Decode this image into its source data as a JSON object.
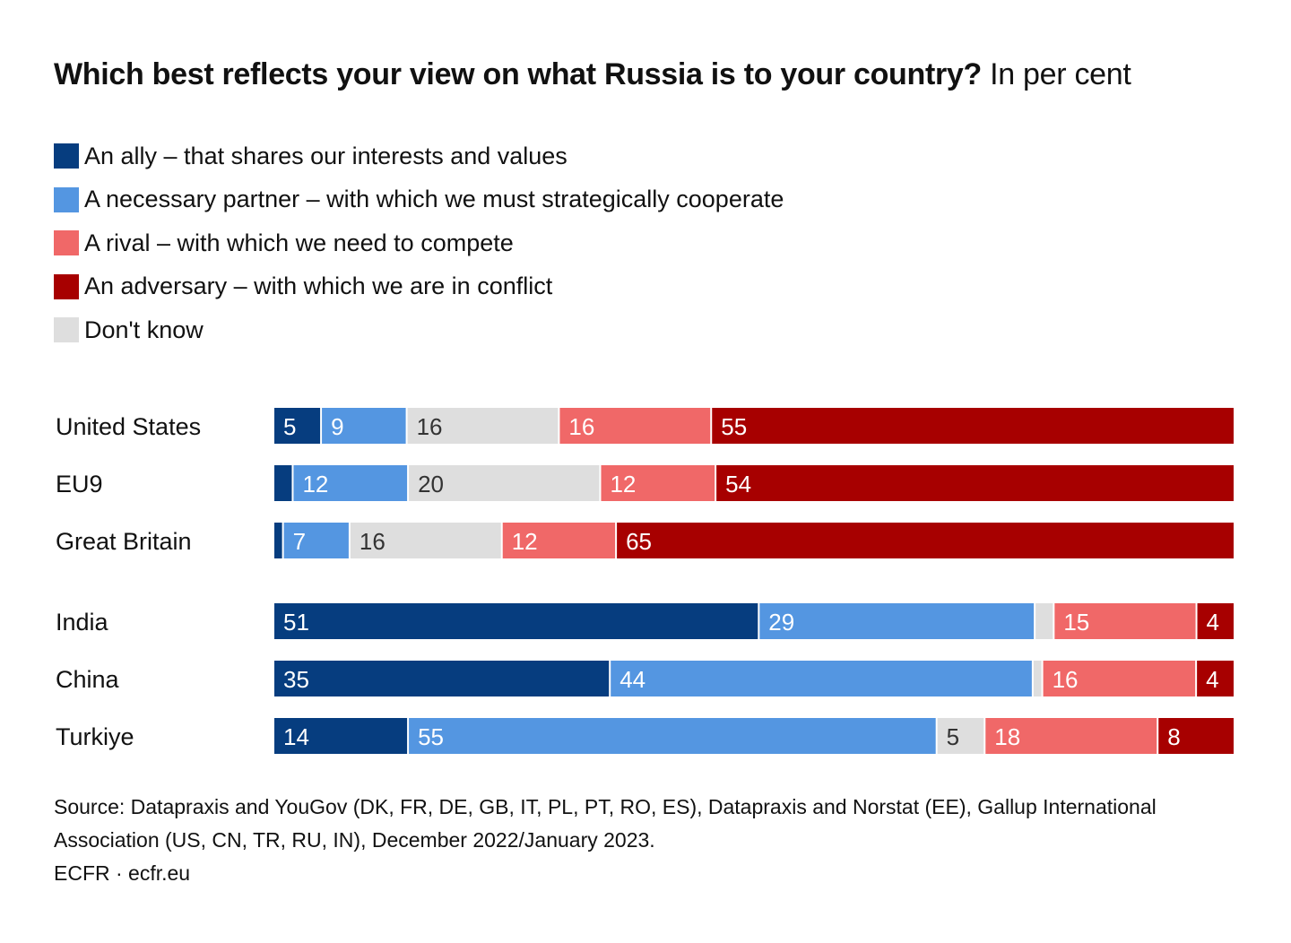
{
  "title": {
    "main": "Which best reflects your view on what Russia is to your country?",
    "sub": "In per cent"
  },
  "colors": {
    "ally": "#063d7f",
    "partner": "#5496e1",
    "dontknow": "#dedede",
    "rival": "#f06868",
    "adversary": "#a70000"
  },
  "legend": [
    {
      "key": "ally",
      "label": "An ally – that shares our interests and values"
    },
    {
      "key": "partner",
      "label": "A necessary partner – with which we must strategically cooperate"
    },
    {
      "key": "rival",
      "label": "A rival – with which we need to compete"
    },
    {
      "key": "adversary",
      "label": "An adversary – with which we are in conflict"
    },
    {
      "key": "dontknow",
      "label": "Don't know"
    }
  ],
  "chart_data": {
    "type": "bar",
    "orientation": "horizontal",
    "stacked": true,
    "normalized_percent": true,
    "segment_order": [
      "ally",
      "partner",
      "dontknow",
      "rival",
      "adversary"
    ],
    "groups": [
      {
        "rows": [
          {
            "label": "United States",
            "values": {
              "ally": 5,
              "partner": 9,
              "dontknow": 16,
              "rival": 16,
              "adversary": 55
            },
            "shown": {
              "ally": "5",
              "partner": "9",
              "dontknow": "16",
              "rival": "16",
              "adversary": "55"
            }
          },
          {
            "label": "EU9",
            "values": {
              "ally": 2,
              "partner": 12,
              "dontknow": 20,
              "rival": 12,
              "adversary": 54
            },
            "shown": {
              "partner": "12",
              "dontknow": "20",
              "rival": "12",
              "adversary": "54"
            }
          },
          {
            "label": "Great Britain",
            "values": {
              "ally": 1,
              "partner": 7,
              "dontknow": 16,
              "rival": 12,
              "adversary": 65
            },
            "shown": {
              "partner": "7",
              "dontknow": "16",
              "rival": "12",
              "adversary": "65"
            }
          }
        ]
      },
      {
        "rows": [
          {
            "label": "India",
            "values": {
              "ally": 51,
              "partner": 29,
              "dontknow": 2,
              "rival": 15,
              "adversary": 4
            },
            "shown": {
              "ally": "51",
              "partner": "29",
              "rival": "15",
              "adversary": "4"
            }
          },
          {
            "label": "China",
            "values": {
              "ally": 35,
              "partner": 44,
              "dontknow": 1,
              "rival": 16,
              "adversary": 4
            },
            "shown": {
              "ally": "35",
              "partner": "44",
              "rival": "16",
              "adversary": "4"
            }
          },
          {
            "label": "Turkiye",
            "values": {
              "ally": 14,
              "partner": 55,
              "dontknow": 5,
              "rival": 18,
              "adversary": 8
            },
            "shown": {
              "ally": "14",
              "partner": "55",
              "dontknow": "5",
              "rival": "18",
              "adversary": "8"
            }
          }
        ]
      }
    ],
    "xlim": [
      0,
      100
    ]
  },
  "footer": {
    "source": "Source: Datapraxis and YouGov (DK, FR, DE, GB, IT, PL, PT, RO, ES), Datapraxis and Norstat (EE), Gallup International Association (US, CN, TR, RU, IN), December 2022/January 2023.",
    "credit": "ECFR · ecfr.eu"
  }
}
